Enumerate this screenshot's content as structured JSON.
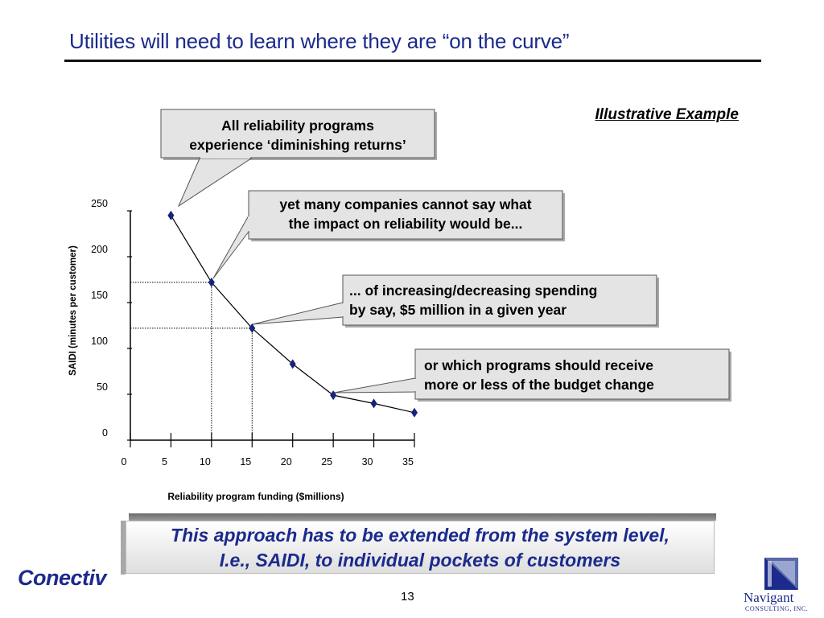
{
  "slide": {
    "title": "Utilities will need to learn where they are “on the curve”",
    "illustrative": "Illustrative Example",
    "page_number": "13",
    "banner": {
      "line1": "This approach has to be extended from the system level,",
      "line2": "I.e., SAIDI, to individual pockets of customers"
    },
    "logos": {
      "left": "Conectiv",
      "right_name": "Navigant",
      "right_sub": "CONSULTING, INC."
    }
  },
  "callouts": [
    {
      "line1": "All reliability programs",
      "line2": "experience ‘diminishing returns’"
    },
    {
      "line1": "yet many companies cannot say what",
      "line2": "the impact on reliability would be..."
    },
    {
      "line1": "... of increasing/decreasing spending",
      "line2": "by say, $5 million in a given year"
    },
    {
      "line1": "or which programs should receive",
      "line2": "more or less of the budget change"
    }
  ],
  "colors": {
    "title": "#1b2a8c",
    "marker": "#16237a",
    "callout_fill": "#e4e4e4"
  },
  "chart_data": {
    "type": "line",
    "xlabel": "Reliability program funding ($millions)",
    "ylabel": "SAIDI (minutes per customer)",
    "xlim": [
      0,
      35
    ],
    "ylim": [
      0,
      250
    ],
    "x_ticks": [
      0,
      5,
      10,
      15,
      20,
      25,
      30,
      35
    ],
    "y_ticks": [
      0,
      50,
      100,
      150,
      200,
      250
    ],
    "series": [
      {
        "x": [
          5,
          10,
          15,
          20,
          25,
          30,
          35
        ],
        "y": [
          245,
          172,
          122,
          83,
          49,
          40,
          30
        ]
      }
    ],
    "reference_points": [
      {
        "x": 10,
        "y": 172
      },
      {
        "x": 15,
        "y": 122
      }
    ],
    "grid": false,
    "legend": "none"
  }
}
